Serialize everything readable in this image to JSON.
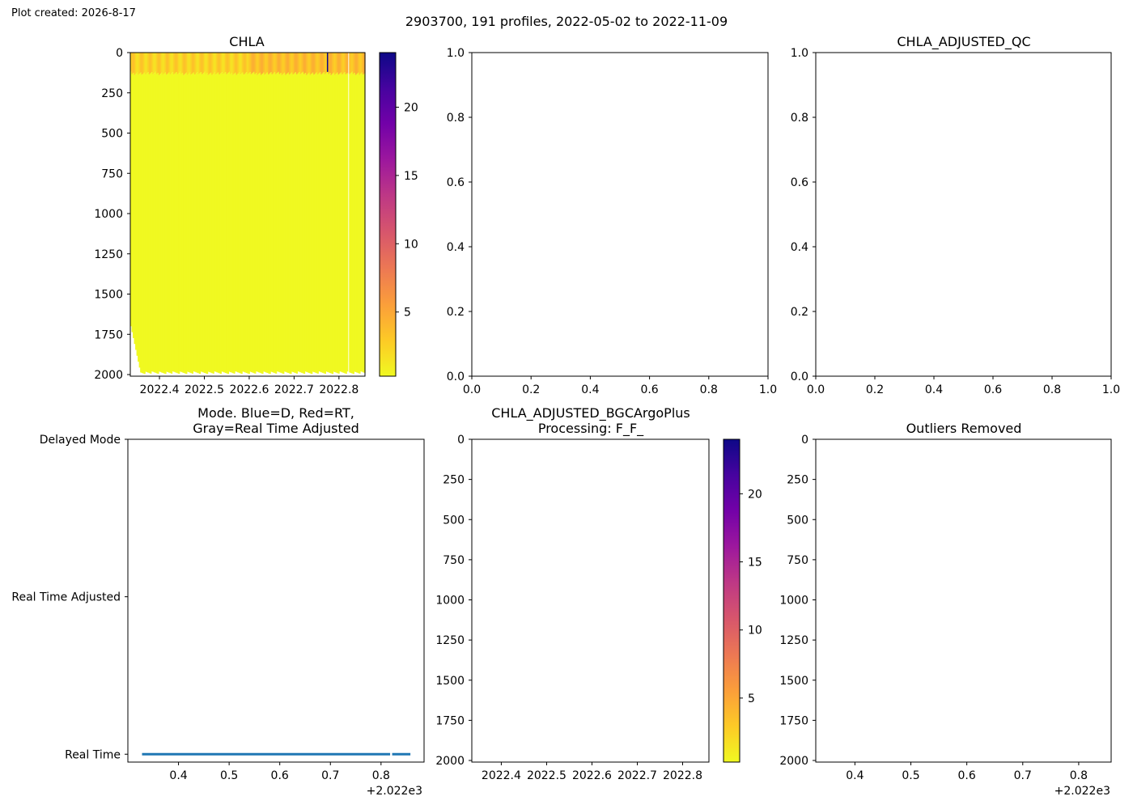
{
  "header": {
    "plot_created": "Plot created: 2026-8-17",
    "suptitle": "2903700, 191 profiles, 2022-05-02 to 2022-11-09"
  },
  "colormap": {
    "name": "plasma_r",
    "stops": [
      "#f0f921",
      "#fdca26",
      "#fb9f3a",
      "#ed7953",
      "#d8576b",
      "#bd3786",
      "#9c179e",
      "#7201a8",
      "#46039f",
      "#0d0887"
    ]
  },
  "colors": {
    "mode_line": "#1f77b4",
    "axes": "#000000",
    "background": "#ffffff"
  },
  "chart_data": [
    {
      "id": "chla",
      "type": "heatmap",
      "title": "CHLA",
      "x_ticks": [
        2022.4,
        2022.5,
        2022.6,
        2022.7,
        2022.8
      ],
      "x_tick_labels": [
        "2022.4",
        "2022.5",
        "2022.6",
        "2022.7",
        "2022.8"
      ],
      "xlim": [
        2022.335,
        2022.858
      ],
      "y_ticks": [
        0,
        250,
        500,
        750,
        1000,
        1250,
        1500,
        1750,
        2000
      ],
      "ylim": [
        2010,
        0
      ],
      "colorbar": {
        "ticks": [
          5,
          10,
          15,
          20
        ],
        "range": [
          0.3,
          24
        ]
      },
      "profiles": {
        "count": 191,
        "start": 2022.335,
        "end": 2022.858
      },
      "surface_layer": {
        "depth_to": 130,
        "approx_value": 2.5,
        "max_value": 24,
        "max_at": 2022.775
      },
      "deep_value": 0.3,
      "gaps": [
        2022.82
      ]
    },
    {
      "id": "empty-1",
      "type": "scatter",
      "title": "",
      "xlim": [
        0,
        1
      ],
      "ylim": [
        0,
        1
      ],
      "x_ticks": [
        0.0,
        0.2,
        0.4,
        0.6,
        0.8,
        1.0
      ],
      "x_tick_labels": [
        "0.0",
        "0.2",
        "0.4",
        "0.6",
        "0.8",
        "1.0"
      ],
      "y_ticks": [
        0.0,
        0.2,
        0.4,
        0.6,
        0.8,
        1.0
      ],
      "y_tick_labels": [
        "0.0",
        "0.2",
        "0.4",
        "0.6",
        "0.8",
        "1.0"
      ]
    },
    {
      "id": "chla-adjusted-qc",
      "type": "scatter",
      "title": "CHLA_ADJUSTED_QC",
      "xlim": [
        0,
        1
      ],
      "ylim": [
        0,
        1
      ],
      "x_ticks": [
        0.0,
        0.2,
        0.4,
        0.6,
        0.8,
        1.0
      ],
      "x_tick_labels": [
        "0.0",
        "0.2",
        "0.4",
        "0.6",
        "0.8",
        "1.0"
      ],
      "y_ticks": [
        0.0,
        0.2,
        0.4,
        0.6,
        0.8,
        1.0
      ],
      "y_tick_labels": [
        "0.0",
        "0.2",
        "0.4",
        "0.6",
        "0.8",
        "1.0"
      ]
    },
    {
      "id": "mode",
      "type": "line",
      "title": [
        "Mode. Blue=D, Red=RT,",
        "Gray=Real Time Adjusted"
      ],
      "xlim": [
        2022.3,
        2022.885
      ],
      "x_ticks": [
        0.4,
        0.5,
        0.6,
        0.7,
        0.8
      ],
      "x_tick_labels": [
        "0.4",
        "0.5",
        "0.6",
        "0.7",
        "0.8"
      ],
      "x_offset_label": "+2.022e3",
      "y_categories": [
        "Real Time",
        "Real Time Adjusted",
        "Delayed Mode"
      ],
      "ylim": [
        -0.05,
        2.0
      ],
      "series": [
        {
          "segments": [
            {
              "x": [
                2022.328,
                2022.818
              ],
              "y": 0
            },
            {
              "x": [
                2022.822,
                2022.858
              ],
              "y": 0
            }
          ]
        }
      ]
    },
    {
      "id": "chla-adjusted-bgcargoplus",
      "type": "heatmap",
      "title": [
        "CHLA_ADJUSTED_BGCArgoPlus",
        "Processing: F_F_"
      ],
      "x_ticks": [
        2022.4,
        2022.5,
        2022.6,
        2022.7,
        2022.8
      ],
      "x_tick_labels": [
        "2022.4",
        "2022.5",
        "2022.6",
        "2022.7",
        "2022.8"
      ],
      "xlim": [
        2022.335,
        2022.858
      ],
      "y_ticks": [
        0,
        250,
        500,
        750,
        1000,
        1250,
        1500,
        1750,
        2000
      ],
      "ylim": [
        2010,
        0
      ],
      "colorbar": {
        "ticks": [
          5,
          10,
          15,
          20
        ],
        "range": [
          0.3,
          24
        ]
      }
    },
    {
      "id": "outliers-removed",
      "type": "scatter",
      "title": "Outliers Removed",
      "xlim": [
        2022.33,
        2022.858
      ],
      "x_ticks": [
        0.4,
        0.5,
        0.6,
        0.7,
        0.8
      ],
      "x_tick_labels": [
        "0.4",
        "0.5",
        "0.6",
        "0.7",
        "0.8"
      ],
      "x_offset_label": "+2.022e3",
      "y_ticks": [
        0,
        250,
        500,
        750,
        1000,
        1250,
        1500,
        1750,
        2000
      ],
      "ylim": [
        2010,
        0
      ]
    }
  ]
}
